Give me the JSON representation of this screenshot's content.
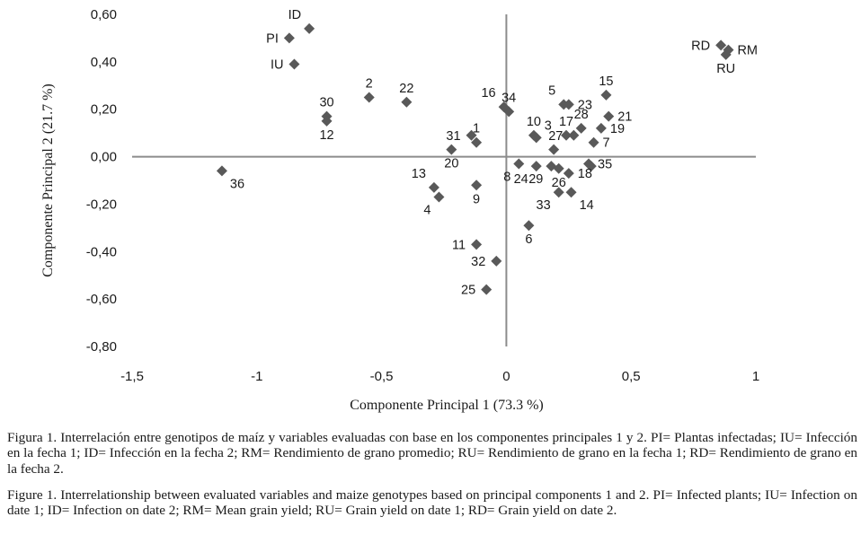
{
  "chart_data": {
    "type": "scatter",
    "xlabel": "Componente Principal 1 (73.3 %)",
    "ylabel": "Componente Principal 2 (21.7 %)",
    "xlim": [
      -1.5,
      1
    ],
    "ylim": [
      -0.8,
      0.6
    ],
    "x_ticks": [
      -1.5,
      -1,
      -0.5,
      0,
      0.5,
      1
    ],
    "x_tick_labels": [
      "-1,5",
      "-1",
      "-0,5",
      "0",
      "0,5",
      "1"
    ],
    "y_ticks": [
      0.6,
      0.4,
      0.2,
      0.0,
      -0.2,
      -0.4,
      -0.6,
      -0.8
    ],
    "y_tick_labels": [
      "0,60",
      "0,40",
      "0,20",
      "0,00",
      "-0,20",
      "-0,40",
      "-0,60",
      "-0,80"
    ],
    "grid": false,
    "marker": "diamond",
    "marker_color": "#595959",
    "axis_color": "#8c8c8c",
    "points": [
      {
        "label": "PI",
        "x": -0.87,
        "y": 0.5,
        "label_pos": "left"
      },
      {
        "label": "ID",
        "x": -0.79,
        "y": 0.54,
        "label_pos": "above-left"
      },
      {
        "label": "IU",
        "x": -0.85,
        "y": 0.39,
        "label_pos": "left"
      },
      {
        "label": "RD",
        "x": 0.86,
        "y": 0.47,
        "label_pos": "left"
      },
      {
        "label": "RM",
        "x": 0.89,
        "y": 0.45,
        "label_pos": "right"
      },
      {
        "label": "RU",
        "x": 0.88,
        "y": 0.43,
        "label_pos": "below"
      },
      {
        "label": "2",
        "x": -0.55,
        "y": 0.25,
        "label_pos": "above"
      },
      {
        "label": "22",
        "x": -0.4,
        "y": 0.23,
        "label_pos": "above"
      },
      {
        "label": "30",
        "x": -0.72,
        "y": 0.17,
        "label_pos": "above"
      },
      {
        "label": "12",
        "x": -0.72,
        "y": 0.15,
        "label_pos": "below"
      },
      {
        "label": "36",
        "x": -1.14,
        "y": -0.06,
        "label_pos": "below-right"
      },
      {
        "label": "16",
        "x": -0.01,
        "y": 0.21,
        "label_pos": "above-left"
      },
      {
        "label": "34",
        "x": 0.01,
        "y": 0.19,
        "label_pos": "above"
      },
      {
        "label": "10",
        "x": 0.11,
        "y": 0.09,
        "label_pos": "above"
      },
      {
        "label": "3",
        "x": 0.12,
        "y": 0.08,
        "label_pos": "above-right"
      },
      {
        "label": "5",
        "x": 0.23,
        "y": 0.22,
        "label_pos": "above-left"
      },
      {
        "label": "23",
        "x": 0.25,
        "y": 0.22,
        "label_pos": "right"
      },
      {
        "label": "17",
        "x": 0.24,
        "y": 0.09,
        "label_pos": "above"
      },
      {
        "label": "28",
        "x": 0.3,
        "y": 0.12,
        "label_pos": "above"
      },
      {
        "label": "15",
        "x": 0.4,
        "y": 0.26,
        "label_pos": "above"
      },
      {
        "label": "21",
        "x": 0.41,
        "y": 0.17,
        "label_pos": "right"
      },
      {
        "label": "19",
        "x": 0.38,
        "y": 0.12,
        "label_pos": "right"
      },
      {
        "label": "7",
        "x": 0.35,
        "y": 0.06,
        "label_pos": "right"
      },
      {
        "label": "31",
        "x": -0.14,
        "y": 0.09,
        "label_pos": "left"
      },
      {
        "label": "1",
        "x": -0.12,
        "y": 0.06,
        "label_pos": "above"
      },
      {
        "label": "27",
        "x": 0.27,
        "y": 0.09,
        "label_pos": "left"
      },
      {
        "label": "20",
        "x": -0.22,
        "y": 0.03,
        "label_pos": "below"
      },
      {
        "label": "",
        "x": 0.19,
        "y": 0.03,
        "label_pos": "none"
      },
      {
        "label": "35",
        "x": 0.33,
        "y": -0.03,
        "label_pos": "right"
      },
      {
        "label": "",
        "x": 0.34,
        "y": -0.04,
        "label_pos": "none"
      },
      {
        "label": "8",
        "x": 0.05,
        "y": -0.03,
        "label_pos": "below-left"
      },
      {
        "label": "24",
        "x": 0.12,
        "y": -0.04,
        "label_pos": "below-left"
      },
      {
        "label": "29",
        "x": 0.18,
        "y": -0.04,
        "label_pos": "below-left"
      },
      {
        "label": "26",
        "x": 0.21,
        "y": -0.05,
        "label_pos": "below"
      },
      {
        "label": "18",
        "x": 0.25,
        "y": -0.07,
        "label_pos": "right"
      },
      {
        "label": "13",
        "x": -0.29,
        "y": -0.13,
        "label_pos": "above-left"
      },
      {
        "label": "4",
        "x": -0.27,
        "y": -0.17,
        "label_pos": "below-left"
      },
      {
        "label": "9",
        "x": -0.12,
        "y": -0.12,
        "label_pos": "below"
      },
      {
        "label": "33",
        "x": 0.21,
        "y": -0.15,
        "label_pos": "below-left"
      },
      {
        "label": "14",
        "x": 0.26,
        "y": -0.15,
        "label_pos": "below-right"
      },
      {
        "label": "6",
        "x": 0.09,
        "y": -0.29,
        "label_pos": "below"
      },
      {
        "label": "11",
        "x": -0.12,
        "y": -0.37,
        "label_pos": "left"
      },
      {
        "label": "32",
        "x": -0.04,
        "y": -0.44,
        "label_pos": "left"
      },
      {
        "label": "25",
        "x": -0.08,
        "y": -0.56,
        "label_pos": "left"
      }
    ]
  },
  "caption": {
    "es": "Figura 1. Interrelación entre genotipos de maíz y variables evaluadas con base en los componentes principales 1 y 2. PI= Plantas infectadas; IU= Infección en la fecha 1; ID= Infección en la fecha 2; RM= Rendimiento de grano promedio; RU= Rendimiento de grano en la fecha 1; RD= Rendimiento de grano en la fecha 2.",
    "en": "Figure 1. Interrelationship between evaluated variables and maize genotypes based on principal components 1 and 2. PI= Infected plants; IU= Infection on date 1; ID= Infection on date 2; RM= Mean grain yield; RU= Grain yield on date 1; RD= Grain yield on date 2."
  }
}
